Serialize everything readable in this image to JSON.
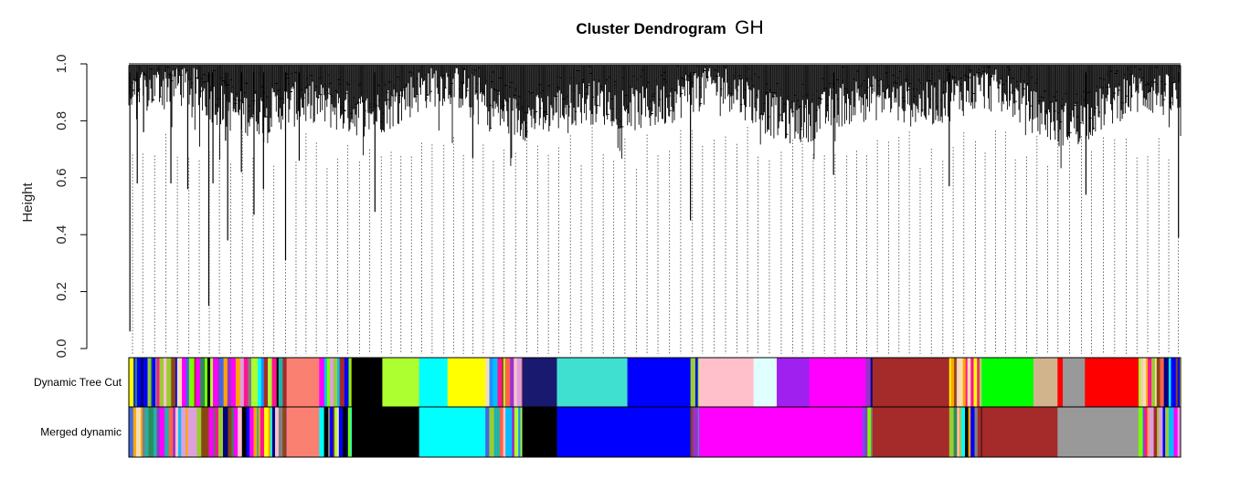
{
  "chart_data": {
    "type": "dendrogram",
    "title": "Cluster Dendrogram",
    "title_suffix": "GH",
    "ylabel": "Height",
    "ylim": [
      0.0,
      1.0
    ],
    "yticks": [
      "0.0",
      "0.2",
      "0.4",
      "0.6",
      "0.8",
      "1.0"
    ],
    "ytick_values": [
      0.0,
      0.2,
      0.4,
      0.6,
      0.8,
      1.0
    ],
    "deep_drops": [
      {
        "pos": 0.001,
        "height": 0.06
      },
      {
        "pos": 0.008,
        "height": 0.58
      },
      {
        "pos": 0.014,
        "height": 0.76
      },
      {
        "pos": 0.04,
        "height": 0.58
      },
      {
        "pos": 0.056,
        "height": 0.56
      },
      {
        "pos": 0.076,
        "height": 0.15
      },
      {
        "pos": 0.08,
        "height": 0.58
      },
      {
        "pos": 0.092,
        "height": 0.73
      },
      {
        "pos": 0.094,
        "height": 0.38
      },
      {
        "pos": 0.107,
        "height": 0.62
      },
      {
        "pos": 0.119,
        "height": 0.47
      },
      {
        "pos": 0.128,
        "height": 0.56
      },
      {
        "pos": 0.149,
        "height": 0.31
      },
      {
        "pos": 0.162,
        "height": 0.66
      },
      {
        "pos": 0.234,
        "height": 0.48
      },
      {
        "pos": 0.327,
        "height": 0.67
      },
      {
        "pos": 0.534,
        "height": 0.45
      },
      {
        "pos": 0.67,
        "height": 0.61
      },
      {
        "pos": 0.78,
        "height": 0.57
      },
      {
        "pos": 0.91,
        "height": 0.54
      },
      {
        "pos": 0.998,
        "height": 0.39
      }
    ],
    "color_rows": [
      {
        "label": "Dynamic Tree Cut",
        "segments": [
          {
            "start": 0.0,
            "end": 0.15,
            "color": "stripes"
          },
          {
            "start": 0.15,
            "end": 0.181,
            "color": "#FA8072"
          },
          {
            "start": 0.181,
            "end": 0.212,
            "color": "stripes"
          },
          {
            "start": 0.212,
            "end": 0.241,
            "color": "#000000"
          },
          {
            "start": 0.241,
            "end": 0.276,
            "color": "#ADFF2F"
          },
          {
            "start": 0.276,
            "end": 0.303,
            "color": "#00FFFF"
          },
          {
            "start": 0.303,
            "end": 0.339,
            "color": "#FFFF00"
          },
          {
            "start": 0.339,
            "end": 0.374,
            "color": "stripes"
          },
          {
            "start": 0.374,
            "end": 0.407,
            "color": "#191970"
          },
          {
            "start": 0.407,
            "end": 0.474,
            "color": "#40E0D0"
          },
          {
            "start": 0.474,
            "end": 0.534,
            "color": "#0000FF"
          },
          {
            "start": 0.534,
            "end": 0.542,
            "color": "stripes"
          },
          {
            "start": 0.542,
            "end": 0.594,
            "color": "#FFC0CB"
          },
          {
            "start": 0.594,
            "end": 0.616,
            "color": "#E0FFFF"
          },
          {
            "start": 0.616,
            "end": 0.647,
            "color": "#A020F0"
          },
          {
            "start": 0.647,
            "end": 0.698,
            "color": "#FF00FF"
          },
          {
            "start": 0.698,
            "end": 0.707,
            "color": "stripes"
          },
          {
            "start": 0.707,
            "end": 0.78,
            "color": "#A52A2A"
          },
          {
            "start": 0.78,
            "end": 0.811,
            "color": "stripes"
          },
          {
            "start": 0.811,
            "end": 0.86,
            "color": "#00FF00"
          },
          {
            "start": 0.86,
            "end": 0.883,
            "color": "#D2B48C"
          },
          {
            "start": 0.883,
            "end": 0.888,
            "color": "#FF0000"
          },
          {
            "start": 0.888,
            "end": 0.909,
            "color": "#999999"
          },
          {
            "start": 0.909,
            "end": 0.96,
            "color": "#FF0000"
          },
          {
            "start": 0.96,
            "end": 1.0,
            "color": "stripes"
          }
        ]
      },
      {
        "label": "Merged dynamic",
        "segments": [
          {
            "start": 0.0,
            "end": 0.15,
            "color": "stripes"
          },
          {
            "start": 0.15,
            "end": 0.181,
            "color": "#FA8072"
          },
          {
            "start": 0.181,
            "end": 0.212,
            "color": "stripes"
          },
          {
            "start": 0.212,
            "end": 0.276,
            "color": "#000000"
          },
          {
            "start": 0.276,
            "end": 0.339,
            "color": "#00FFFF"
          },
          {
            "start": 0.339,
            "end": 0.374,
            "color": "stripes"
          },
          {
            "start": 0.374,
            "end": 0.407,
            "color": "#000000"
          },
          {
            "start": 0.407,
            "end": 0.534,
            "color": "#0000FF"
          },
          {
            "start": 0.534,
            "end": 0.542,
            "color": "stripes"
          },
          {
            "start": 0.542,
            "end": 0.698,
            "color": "#FF00FF"
          },
          {
            "start": 0.698,
            "end": 0.707,
            "color": "stripes"
          },
          {
            "start": 0.707,
            "end": 0.78,
            "color": "#A52A2A"
          },
          {
            "start": 0.78,
            "end": 0.811,
            "color": "stripes"
          },
          {
            "start": 0.811,
            "end": 0.883,
            "color": "#A52A2A"
          },
          {
            "start": 0.883,
            "end": 0.96,
            "color": "#999999"
          },
          {
            "start": 0.96,
            "end": 1.0,
            "color": "stripes"
          }
        ]
      }
    ]
  }
}
